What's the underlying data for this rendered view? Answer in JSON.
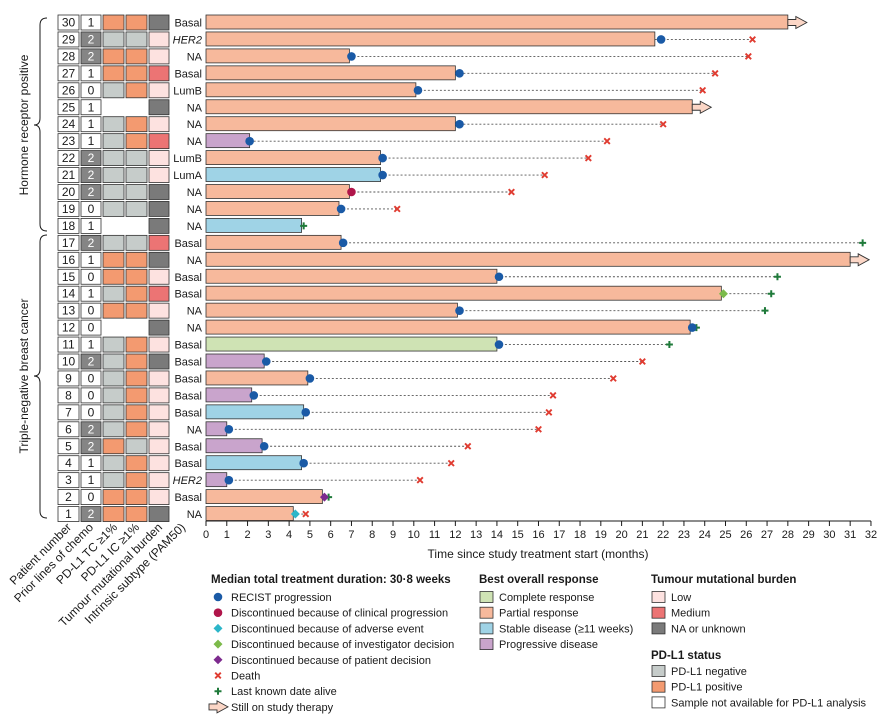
{
  "colors": {
    "partial": "#f7b99c",
    "complete": "#cfe3b4",
    "stable": "#9fd3e6",
    "progressive": "#c9a4cc",
    "recist": "#1a5aa6",
    "clinical": "#b0154a",
    "adverse": "#2cb6c9",
    "investigator": "#7cba4a",
    "patient": "#7d2a8e",
    "death": "#e03c31",
    "alive": "#1f7a3a",
    "tmb_low": "#fde2e0",
    "tmb_medium": "#ec7474",
    "tmb_na": "#7a7a7a",
    "pdl1_neg": "#c6ccca",
    "pdl1_pos": "#f39a70",
    "pdl1_na": "#ffffff",
    "chemo_dark": "#858585"
  },
  "row_labels": {
    "hr_positive": "Hormone receptor positive",
    "tnbc": "Triple-negative breast cancer"
  },
  "column_headers": [
    "Patient number",
    "Prior lines of chemo",
    "PD-L1 TC ≥1%",
    "PD-L1 IC ≥1%",
    "Tumour mutational burden",
    "Intrinsic subtype (PAM50)"
  ],
  "chart_data": {
    "type": "swimmer",
    "xlabel": "Time since study treatment start (months)",
    "xlim": [
      0,
      32
    ],
    "xticks": [
      0,
      1,
      2,
      3,
      4,
      5,
      6,
      7,
      8,
      9,
      10,
      11,
      12,
      13,
      14,
      15,
      16,
      17,
      18,
      19,
      20,
      21,
      22,
      23,
      24,
      25,
      26,
      27,
      28,
      29,
      30,
      31,
      32
    ],
    "patients": [
      {
        "id": "30",
        "chemo": "1",
        "tc": "pos",
        "ic": "pos",
        "tmb": "na",
        "subtype": "Basal",
        "bar": 28.0,
        "resp": "partial",
        "ev": null,
        "end": null,
        "endx": null,
        "arrow": true
      },
      {
        "id": "29",
        "chemo": "2",
        "tc": "neg",
        "ic": "neg",
        "tmb": "low",
        "subtype": "HER2",
        "bar": 21.6,
        "resp": "partial",
        "ev": "recist",
        "evx": 21.9,
        "end": "death",
        "endx": 26.3,
        "arrow": false
      },
      {
        "id": "28",
        "chemo": "2",
        "tc": "pos",
        "ic": "pos",
        "tmb": "low",
        "subtype": "NA",
        "bar": 6.9,
        "resp": "partial",
        "ev": "recist",
        "evx": 7.0,
        "end": "death",
        "endx": 26.1,
        "arrow": false
      },
      {
        "id": "27",
        "chemo": "1",
        "tc": "pos",
        "ic": "pos",
        "tmb": "medium",
        "subtype": "Basal",
        "bar": 12.0,
        "resp": "partial",
        "ev": "recist",
        "evx": 12.2,
        "end": "death",
        "endx": 24.5,
        "arrow": false
      },
      {
        "id": "26",
        "chemo": "0",
        "tc": "neg",
        "ic": "pos",
        "tmb": "low",
        "subtype": "LumB",
        "bar": 10.1,
        "resp": "partial",
        "ev": "recist",
        "evx": 10.2,
        "end": "death",
        "endx": 23.9,
        "arrow": false
      },
      {
        "id": "25",
        "chemo": "1",
        "tc": "na",
        "ic": "na",
        "tmb": "na",
        "subtype": "NA",
        "bar": 23.4,
        "resp": "partial",
        "ev": null,
        "end": null,
        "endx": null,
        "arrow": true
      },
      {
        "id": "24",
        "chemo": "1",
        "tc": "neg",
        "ic": "pos",
        "tmb": "low",
        "subtype": "NA",
        "bar": 12.0,
        "resp": "partial",
        "ev": "recist",
        "evx": 12.2,
        "end": "death",
        "endx": 22.0,
        "arrow": false
      },
      {
        "id": "23",
        "chemo": "1",
        "tc": "neg",
        "ic": "pos",
        "tmb": "medium",
        "subtype": "NA",
        "bar": 2.1,
        "resp": "progressive",
        "ev": "recist",
        "evx": 2.1,
        "end": "death",
        "endx": 19.3,
        "arrow": false
      },
      {
        "id": "22",
        "chemo": "2",
        "tc": "neg",
        "ic": "neg",
        "tmb": "low",
        "subtype": "LumB",
        "bar": 8.4,
        "resp": "partial",
        "ev": "recist",
        "evx": 8.5,
        "end": "death",
        "endx": 18.4,
        "arrow": false
      },
      {
        "id": "21",
        "chemo": "2",
        "tc": "neg",
        "ic": "neg",
        "tmb": "low",
        "subtype": "LumA",
        "bar": 8.4,
        "resp": "stable",
        "ev": "recist",
        "evx": 8.5,
        "end": "death",
        "endx": 16.3,
        "arrow": false
      },
      {
        "id": "20",
        "chemo": "2",
        "tc": "neg",
        "ic": "neg",
        "tmb": "na",
        "subtype": "NA",
        "bar": 6.9,
        "resp": "partial",
        "ev": "clinical",
        "evx": 7.0,
        "end": "death",
        "endx": 14.7,
        "arrow": false
      },
      {
        "id": "19",
        "chemo": "0",
        "tc": "neg",
        "ic": "neg",
        "tmb": "na",
        "subtype": "NA",
        "bar": 6.4,
        "resp": "partial",
        "ev": "recist",
        "evx": 6.5,
        "end": "death",
        "endx": 9.2,
        "arrow": false
      },
      {
        "id": "18",
        "chemo": "1",
        "tc": "na",
        "ic": "na",
        "tmb": "na",
        "subtype": "NA",
        "bar": 4.6,
        "resp": "stable",
        "ev": null,
        "end": "alive",
        "endx": 4.7,
        "arrow": false
      },
      {
        "id": "17",
        "chemo": "2",
        "tc": "neg",
        "ic": "neg",
        "tmb": "medium",
        "subtype": "Basal",
        "bar": 6.5,
        "resp": "partial",
        "ev": "recist",
        "evx": 6.6,
        "end": "alive",
        "endx": 31.6,
        "arrow": false
      },
      {
        "id": "16",
        "chemo": "1",
        "tc": "pos",
        "ic": "pos",
        "tmb": "na",
        "subtype": "NA",
        "bar": 31.0,
        "resp": "partial",
        "ev": null,
        "end": null,
        "endx": null,
        "arrow": true
      },
      {
        "id": "15",
        "chemo": "0",
        "tc": "pos",
        "ic": "pos",
        "tmb": "low",
        "subtype": "Basal",
        "bar": 14.0,
        "resp": "partial",
        "ev": "recist",
        "evx": 14.1,
        "end": "alive",
        "endx": 27.5,
        "arrow": false
      },
      {
        "id": "14",
        "chemo": "1",
        "tc": "neg",
        "ic": "pos",
        "tmb": "medium",
        "subtype": "Basal",
        "bar": 24.8,
        "resp": "partial",
        "ev": "investigator",
        "evx": 24.9,
        "end": "alive",
        "endx": 27.2,
        "arrow": false
      },
      {
        "id": "13",
        "chemo": "0",
        "tc": "pos",
        "ic": "pos",
        "tmb": "low",
        "subtype": "NA",
        "bar": 12.1,
        "resp": "partial",
        "ev": "recist",
        "evx": 12.2,
        "end": "alive",
        "endx": 26.9,
        "arrow": false
      },
      {
        "id": "12",
        "chemo": "0",
        "tc": "na",
        "ic": "na",
        "tmb": "na",
        "subtype": "NA",
        "bar": 23.3,
        "resp": "partial",
        "ev": "recist",
        "evx": 23.4,
        "end": "alive",
        "endx": 23.6,
        "arrow": false
      },
      {
        "id": "11",
        "chemo": "1",
        "tc": "neg",
        "ic": "pos",
        "tmb": "low",
        "subtype": "Basal",
        "bar": 14.0,
        "resp": "complete",
        "ev": "recist",
        "evx": 14.1,
        "end": "alive",
        "endx": 22.3,
        "arrow": false
      },
      {
        "id": "10",
        "chemo": "2",
        "tc": "neg",
        "ic": "pos",
        "tmb": "na",
        "subtype": "Basal",
        "bar": 2.8,
        "resp": "progressive",
        "ev": "recist",
        "evx": 2.9,
        "end": "death",
        "endx": 21.0,
        "arrow": false
      },
      {
        "id": "9",
        "chemo": "0",
        "tc": "neg",
        "ic": "pos",
        "tmb": "low",
        "subtype": "Basal",
        "bar": 4.9,
        "resp": "partial",
        "ev": "recist",
        "evx": 5.0,
        "end": "death",
        "endx": 19.6,
        "arrow": false
      },
      {
        "id": "8",
        "chemo": "0",
        "tc": "neg",
        "ic": "pos",
        "tmb": "low",
        "subtype": "Basal",
        "bar": 2.2,
        "resp": "progressive",
        "ev": "recist",
        "evx": 2.3,
        "end": "death",
        "endx": 16.7,
        "arrow": false
      },
      {
        "id": "7",
        "chemo": "0",
        "tc": "neg",
        "ic": "pos",
        "tmb": "low",
        "subtype": "Basal",
        "bar": 4.7,
        "resp": "stable",
        "ev": "recist",
        "evx": 4.8,
        "end": "death",
        "endx": 16.5,
        "arrow": false
      },
      {
        "id": "6",
        "chemo": "2",
        "tc": "neg",
        "ic": "pos",
        "tmb": "low",
        "subtype": "NA",
        "bar": 1.0,
        "resp": "progressive",
        "ev": "recist",
        "evx": 1.1,
        "end": "death",
        "endx": 16.0,
        "arrow": false
      },
      {
        "id": "5",
        "chemo": "2",
        "tc": "pos",
        "ic": "neg",
        "tmb": "low",
        "subtype": "Basal",
        "bar": 2.7,
        "resp": "progressive",
        "ev": "recist",
        "evx": 2.8,
        "end": "death",
        "endx": 12.6,
        "arrow": false
      },
      {
        "id": "4",
        "chemo": "1",
        "tc": "neg",
        "ic": "pos",
        "tmb": "low",
        "subtype": "Basal",
        "bar": 4.6,
        "resp": "stable",
        "ev": "recist",
        "evx": 4.7,
        "end": "death",
        "endx": 11.8,
        "arrow": false
      },
      {
        "id": "3",
        "chemo": "1",
        "tc": "neg",
        "ic": "pos",
        "tmb": "low",
        "subtype": "HER2",
        "bar": 1.0,
        "resp": "progressive",
        "ev": "recist",
        "evx": 1.1,
        "end": "death",
        "endx": 10.3,
        "arrow": false
      },
      {
        "id": "2",
        "chemo": "0",
        "tc": "pos",
        "ic": "pos",
        "tmb": "low",
        "subtype": "Basal",
        "bar": 5.6,
        "resp": "partial",
        "ev": "patient",
        "evx": 5.7,
        "end": "alive",
        "endx": 5.9,
        "arrow": false
      },
      {
        "id": "1",
        "chemo": "2",
        "tc": "pos",
        "ic": "pos",
        "tmb": "na",
        "subtype": "NA",
        "bar": 4.2,
        "resp": "partial",
        "ev": "adverse",
        "evx": 4.3,
        "end": "death",
        "endx": 4.8,
        "arrow": false
      }
    ]
  },
  "legend": {
    "median_title": "Median total treatment duration: 30·8 weeks",
    "events": [
      {
        "sym": "recist",
        "label": "RECIST progression"
      },
      {
        "sym": "clinical",
        "label": "Discontinued because of clinical progression"
      },
      {
        "sym": "adverse",
        "label": "Discontinued because of adverse event"
      },
      {
        "sym": "investigator",
        "label": "Discontinued because of investigator decision"
      },
      {
        "sym": "patient",
        "label": "Discontinued because of patient decision"
      },
      {
        "sym": "death",
        "label": "Death"
      },
      {
        "sym": "alive",
        "label": "Last known date alive"
      },
      {
        "sym": "arrow",
        "label": "Still on study therapy"
      }
    ],
    "response_title": "Best overall response",
    "responses": [
      {
        "key": "complete",
        "label": "Complete response"
      },
      {
        "key": "partial",
        "label": "Partial response"
      },
      {
        "key": "stable",
        "label": "Stable disease (≥11 weeks)"
      },
      {
        "key": "progressive",
        "label": "Progressive disease"
      }
    ],
    "tmb_title": "Tumour mutational burden",
    "tmb": [
      {
        "key": "tmb_low",
        "label": "Low"
      },
      {
        "key": "tmb_medium",
        "label": "Medium"
      },
      {
        "key": "tmb_na",
        "label": "NA or unknown"
      }
    ],
    "pdl1_title": "PD-L1 status",
    "pdl1": [
      {
        "key": "pdl1_neg",
        "label": "PD-L1 negative"
      },
      {
        "key": "pdl1_pos",
        "label": "PD-L1 positive"
      },
      {
        "key": "pdl1_na",
        "label": "Sample not available for PD-L1 analysis"
      }
    ]
  }
}
